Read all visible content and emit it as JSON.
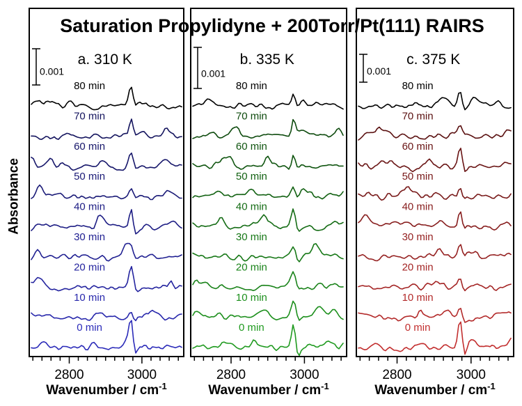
{
  "chart_data": {
    "type": "line",
    "title": "Saturation Propylidyne + 200Torr/Pt(111) RAIRS",
    "ylabel": "Absorbance",
    "xlabel": "Wavenumber / cm",
    "xlabel_superscript": "-1",
    "x_range_cm": [
      2690,
      3115
    ],
    "x_major_ticks": [
      2800,
      3000
    ],
    "x_major_tick_labels": [
      "2800",
      "3000"
    ],
    "x_minor_tick_step_cm": 25,
    "scale_bar": {
      "label": "0.001",
      "absorbance_units": 0.001
    },
    "trace_labels": [
      "80 min",
      "70 min",
      "60 min",
      "50 min",
      "40 min",
      "30 min",
      "20 min",
      "10 min",
      "0 min"
    ],
    "trace_times_min": [
      80,
      70,
      60,
      50,
      40,
      30,
      20,
      10,
      0
    ],
    "main_peak_cm": 2970,
    "panels": [
      {
        "id": "a",
        "label": "a. 310 K",
        "temperature_K": 310,
        "trace_color_bright": "#2b2bb9",
        "trace_color_dark": "#13135d",
        "trace_color_top": "#000000"
      },
      {
        "id": "b",
        "label": "b. 335 K",
        "temperature_K": 335,
        "trace_color_bright": "#1f9a1f",
        "trace_color_dark": "#0d4a0d",
        "trace_color_top": "#000000"
      },
      {
        "id": "c",
        "label": "c. 375 K",
        "temperature_K": 375,
        "trace_color_bright": "#c22e2e",
        "trace_color_dark": "#5a1010",
        "trace_color_top": "#000000"
      }
    ]
  }
}
